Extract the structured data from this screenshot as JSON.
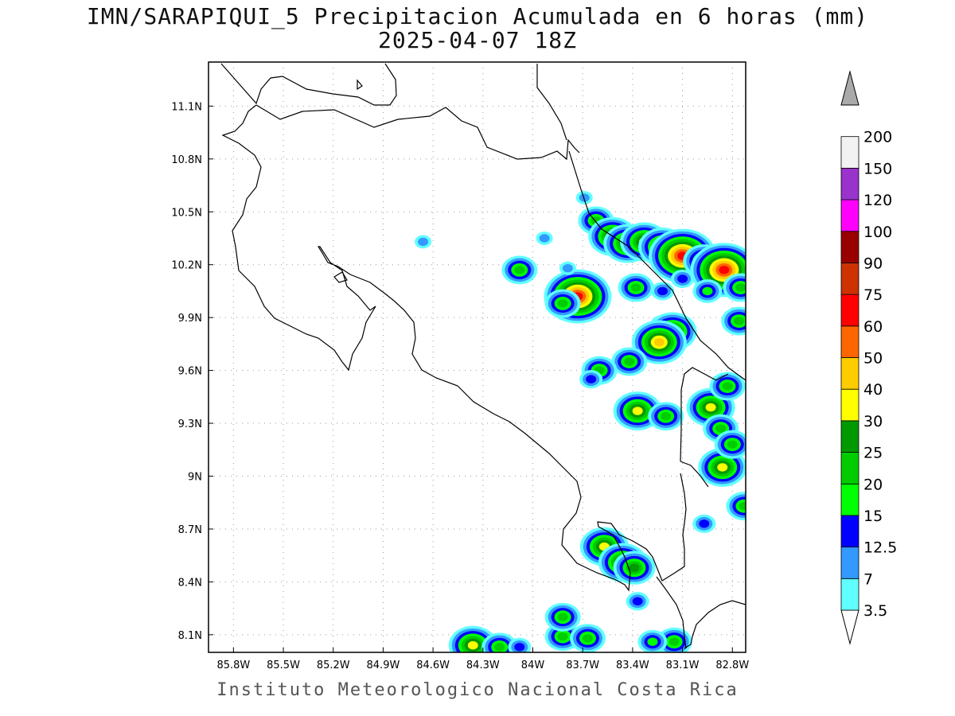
{
  "title_line1": "IMN/SARAPIQUI_5 Precipitacion Acumulada en 6 horas (mm)",
  "title_line2": "2025-04-07 18Z",
  "footer": "Instituto Meteorologico Nacional Costa Rica",
  "map": {
    "lon_range": [
      -85.95,
      -82.72
    ],
    "lat_range": [
      8.0,
      11.35
    ],
    "lon_ticks": [
      "85.8W",
      "85.5W",
      "85.2W",
      "84.9W",
      "84.6W",
      "84.3W",
      "84W",
      "83.7W",
      "83.4W",
      "83.1W",
      "82.8W"
    ],
    "lon_tick_values": [
      -85.8,
      -85.5,
      -85.2,
      -84.9,
      -84.6,
      -84.3,
      -84.0,
      -83.7,
      -83.4,
      -83.1,
      -82.8
    ],
    "lat_ticks": [
      "11.1N",
      "10.8N",
      "10.5N",
      "10.2N",
      "9.9N",
      "9.6N",
      "9.3N",
      "9N",
      "8.7N",
      "8.4N",
      "8.1N"
    ],
    "lat_tick_values": [
      11.1,
      10.8,
      10.5,
      10.2,
      9.9,
      9.6,
      9.3,
      9.0,
      8.7,
      8.4,
      8.1
    ],
    "grid": "dotted"
  },
  "colorbar": {
    "labels": [
      "3.5",
      "7",
      "12.5",
      "15",
      "20",
      "25",
      "30",
      "40",
      "50",
      "60",
      "75",
      "90",
      "100",
      "120",
      "150",
      "200"
    ],
    "colors": [
      "#60ffff",
      "#3399ff",
      "#0000ff",
      "#00ff00",
      "#00cc00",
      "#009900",
      "#ffff00",
      "#ffcc00",
      "#ff6600",
      "#ff0000",
      "#cc3300",
      "#990000",
      "#ff00ff",
      "#9933cc",
      "#f2f2f2",
      "#aaaaaa"
    ]
  },
  "precip_cells": [
    {
      "lon": -83.62,
      "lat": 10.45,
      "level": 4
    },
    {
      "lon": -83.52,
      "lat": 10.36,
      "level": 6
    },
    {
      "lon": -83.43,
      "lat": 10.32,
      "level": 6
    },
    {
      "lon": -83.33,
      "lat": 10.33,
      "level": 6
    },
    {
      "lon": -83.22,
      "lat": 10.3,
      "level": 6
    },
    {
      "lon": -83.1,
      "lat": 10.25,
      "level": 9
    },
    {
      "lon": -82.97,
      "lat": 10.22,
      "level": 5
    },
    {
      "lon": -82.85,
      "lat": 10.17,
      "level": 9
    },
    {
      "lon": -82.75,
      "lat": 10.07,
      "level": 4
    },
    {
      "lon": -82.95,
      "lat": 10.05,
      "level": 3
    },
    {
      "lon": -83.1,
      "lat": 10.12,
      "level": 2
    },
    {
      "lon": -83.22,
      "lat": 10.05,
      "level": 2
    },
    {
      "lon": -83.38,
      "lat": 10.07,
      "level": 4
    },
    {
      "lon": -83.73,
      "lat": 10.02,
      "level": 9
    },
    {
      "lon": -83.82,
      "lat": 9.98,
      "level": 4
    },
    {
      "lon": -84.08,
      "lat": 10.17,
      "level": 4
    },
    {
      "lon": -83.79,
      "lat": 10.18,
      "level": 1
    },
    {
      "lon": -84.66,
      "lat": 10.33,
      "level": 1
    },
    {
      "lon": -83.21,
      "lat": 9.85,
      "level": 3
    },
    {
      "lon": -83.16,
      "lat": 9.82,
      "level": 6
    },
    {
      "lon": -83.24,
      "lat": 9.76,
      "level": 7
    },
    {
      "lon": -83.42,
      "lat": 9.65,
      "level": 4
    },
    {
      "lon": -83.6,
      "lat": 9.6,
      "level": 4
    },
    {
      "lon": -83.37,
      "lat": 9.37,
      "level": 6
    },
    {
      "lon": -83.2,
      "lat": 9.34,
      "level": 4
    },
    {
      "lon": -82.93,
      "lat": 9.39,
      "level": 6
    },
    {
      "lon": -82.83,
      "lat": 9.51,
      "level": 4
    },
    {
      "lon": -82.86,
      "lat": 9.05,
      "level": 6
    },
    {
      "lon": -82.73,
      "lat": 8.83,
      "level": 4
    },
    {
      "lon": -83.57,
      "lat": 8.6,
      "level": 6
    },
    {
      "lon": -83.46,
      "lat": 8.51,
      "level": 6
    },
    {
      "lon": -83.39,
      "lat": 8.48,
      "level": 5
    },
    {
      "lon": -84.36,
      "lat": 8.04,
      "level": 6
    },
    {
      "lon": -84.2,
      "lat": 8.03,
      "level": 4
    },
    {
      "lon": -84.08,
      "lat": 8.03,
      "level": 2
    },
    {
      "lon": -83.82,
      "lat": 8.09,
      "level": 4
    },
    {
      "lon": -83.67,
      "lat": 8.08,
      "level": 4
    },
    {
      "lon": -83.82,
      "lat": 8.2,
      "level": 4
    },
    {
      "lon": -83.15,
      "lat": 8.06,
      "level": 4
    },
    {
      "lon": -83.28,
      "lat": 8.06,
      "level": 3
    },
    {
      "lon": -82.76,
      "lat": 9.88,
      "level": 4
    },
    {
      "lon": -83.69,
      "lat": 10.58,
      "level": 1
    },
    {
      "lon": -83.65,
      "lat": 9.55,
      "level": 2
    },
    {
      "lon": -82.97,
      "lat": 8.73,
      "level": 2
    },
    {
      "lon": -83.37,
      "lat": 8.29,
      "level": 2
    },
    {
      "lon": -83.93,
      "lat": 10.35,
      "level": 1
    },
    {
      "lon": -82.87,
      "lat": 9.27,
      "level": 4
    },
    {
      "lon": -82.8,
      "lat": 9.18,
      "level": 4
    }
  ]
}
